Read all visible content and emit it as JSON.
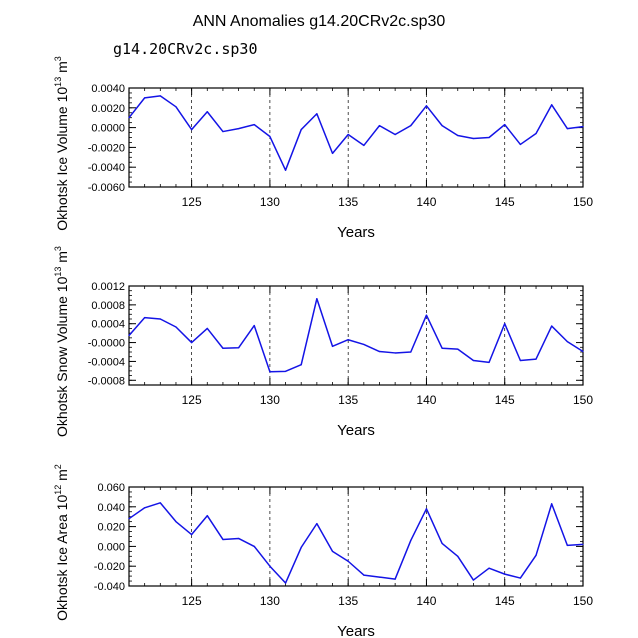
{
  "title": "ANN Anomalies g14.20CRv2c.sp30",
  "subtitle": "g14.20CRv2c.sp30",
  "colors": {
    "line": "#1414e6",
    "subtitle": "#3a3ad6",
    "axis": "#000000",
    "grid": "#000000"
  },
  "chart_data": [
    {
      "type": "line",
      "ylabel": "Okhotsk Ice Volume 10",
      "yunit_exp": "13",
      "yunit": "m",
      "yunit_pow": "3",
      "xlabel": "Years",
      "xlim": [
        121,
        150
      ],
      "ylim": [
        -0.006,
        0.004
      ],
      "xticks": [
        125,
        130,
        135,
        140,
        145,
        150
      ],
      "yticks": [
        -0.006,
        -0.004,
        -0.002,
        0.0,
        0.002,
        0.004
      ],
      "ytick_labels": [
        "-0.0060",
        "-0.0040",
        "-0.0020",
        "0.0000",
        "0.0020",
        "0.0040"
      ],
      "grid_x": [
        125,
        130,
        135,
        140,
        145
      ],
      "series": [
        {
          "name": "g14.20CRv2c.sp30",
          "x": [
            121,
            122,
            123,
            124,
            125,
            126,
            127,
            128,
            129,
            130,
            131,
            132,
            133,
            134,
            135,
            136,
            137,
            138,
            139,
            140,
            141,
            142,
            143,
            144,
            145,
            146,
            147,
            148,
            149,
            150
          ],
          "values": [
            0.001,
            0.003,
            0.0032,
            0.0021,
            -0.0002,
            0.0016,
            -0.0004,
            -0.0001,
            0.0003,
            -0.0009,
            -0.0043,
            -0.0002,
            0.0014,
            -0.0026,
            -0.0007,
            -0.0018,
            0.0002,
            -0.0007,
            0.0002,
            0.0022,
            0.0002,
            -0.0008,
            -0.0011,
            -0.001,
            0.0003,
            -0.0017,
            -0.0006,
            0.0023,
            -0.0001,
            0.0001
          ]
        }
      ]
    },
    {
      "type": "line",
      "ylabel": "Okhotsk Snow Volume 10",
      "yunit_exp": "13",
      "yunit": "m",
      "yunit_pow": "3",
      "xlabel": "Years",
      "xlim": [
        121,
        150
      ],
      "ylim": [
        -0.0009,
        0.0012
      ],
      "xticks": [
        125,
        130,
        135,
        140,
        145,
        150
      ],
      "yticks": [
        -0.0008,
        -0.0004,
        0.0,
        0.0004,
        0.0008,
        0.0012
      ],
      "ytick_labels": [
        "-0.0008",
        "-0.0004",
        "-0.0000",
        "0.0004",
        "0.0008",
        "0.0012"
      ],
      "grid_x": [
        125,
        130,
        135,
        140,
        145
      ],
      "series": [
        {
          "name": "g14.20CRv2c.sp30",
          "x": [
            121,
            122,
            123,
            124,
            125,
            126,
            127,
            128,
            129,
            130,
            131,
            132,
            133,
            134,
            135,
            136,
            137,
            138,
            139,
            140,
            141,
            142,
            143,
            144,
            145,
            146,
            147,
            148,
            149,
            150
          ],
          "values": [
            0.00015,
            0.00053,
            0.0005,
            0.00033,
            0.0,
            0.0003,
            -0.00012,
            -0.00011,
            0.00036,
            -0.00062,
            -0.00061,
            -0.00047,
            0.00093,
            -8e-05,
            6e-05,
            -4e-05,
            -0.00019,
            -0.00022,
            -0.0002,
            0.00058,
            -0.00012,
            -0.00014,
            -0.00038,
            -0.00042,
            0.0004,
            -0.00038,
            -0.00035,
            0.00035,
            2e-05,
            -0.00019
          ]
        }
      ]
    },
    {
      "type": "line",
      "ylabel": "Okhotsk Ice Area 10",
      "yunit_exp": "12",
      "yunit": "m",
      "yunit_pow": "2",
      "xlabel": "Years",
      "xlim": [
        121,
        150
      ],
      "ylim": [
        -0.04,
        0.06
      ],
      "xticks": [
        125,
        130,
        135,
        140,
        145,
        150
      ],
      "yticks": [
        -0.04,
        -0.02,
        0.0,
        0.02,
        0.04,
        0.06
      ],
      "ytick_labels": [
        "-0.040",
        "-0.020",
        "0.000",
        "0.020",
        "0.040",
        "0.060"
      ],
      "grid_x": [
        125,
        130,
        135,
        140,
        145
      ],
      "series": [
        {
          "name": "g14.20CRv2c.sp30",
          "x": [
            121,
            122,
            123,
            124,
            125,
            126,
            127,
            128,
            129,
            130,
            131,
            132,
            133,
            134,
            135,
            136,
            137,
            138,
            139,
            140,
            141,
            142,
            143,
            144,
            145,
            146,
            147,
            148,
            149,
            150
          ],
          "values": [
            0.028,
            0.039,
            0.044,
            0.025,
            0.012,
            0.031,
            0.007,
            0.008,
            0.0,
            -0.02,
            -0.037,
            -0.001,
            0.023,
            -0.005,
            -0.015,
            -0.029,
            -0.031,
            -0.033,
            0.006,
            0.038,
            0.003,
            -0.01,
            -0.034,
            -0.022,
            -0.028,
            -0.032,
            -0.009,
            0.043,
            0.001,
            0.002
          ]
        }
      ]
    }
  ]
}
